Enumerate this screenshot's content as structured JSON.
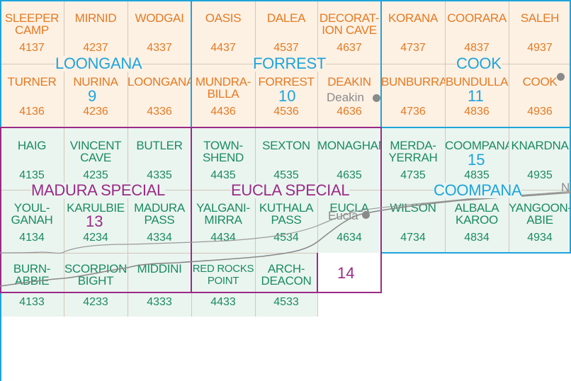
{
  "colors": {
    "orange": "#e57a22",
    "green": "#1b8a63",
    "cyan": "#1ea4dc",
    "purple": "#9b2a86",
    "orange_fill": "#fdf1e4",
    "green_fill": "#eaf5f0",
    "gray": "#8a8a8a"
  },
  "sheets": [
    {
      "name": "SLEEPER\nCAMP",
      "num": "4137",
      "tone": "orange"
    },
    {
      "name": "MIRNID",
      "num": "4237",
      "tone": "orange"
    },
    {
      "name": "WODGAI",
      "num": "4337",
      "tone": "orange"
    },
    {
      "name": "OASIS",
      "num": "4437",
      "tone": "orange"
    },
    {
      "name": "DALEA",
      "num": "4537",
      "tone": "orange"
    },
    {
      "name": "DECORAT-\nION CAVE",
      "num": "4637",
      "tone": "orange"
    },
    {
      "name": "KORANA",
      "num": "4737",
      "tone": "orange"
    },
    {
      "name": "COORARA",
      "num": "4837",
      "tone": "orange"
    },
    {
      "name": "SALEH",
      "num": "4937",
      "tone": "orange"
    },
    {
      "name": "TURNER",
      "num": "4136",
      "tone": "orange"
    },
    {
      "name": "NURINA",
      "num": "4236",
      "tone": "orange"
    },
    {
      "name": "LOONGANA",
      "num": "4336",
      "tone": "orange"
    },
    {
      "name": "MUNDRA-\nBILLA",
      "num": "4436",
      "tone": "orange"
    },
    {
      "name": "FORREST",
      "num": "4536",
      "tone": "orange"
    },
    {
      "name": "DEAKIN",
      "num": "4636",
      "tone": "orange"
    },
    {
      "name": "BUNBURRA",
      "num": "4736",
      "tone": "orange"
    },
    {
      "name": "BUNDULLA",
      "num": "4836",
      "tone": "orange"
    },
    {
      "name": "COOK",
      "num": "4936",
      "tone": "orange"
    },
    {
      "name": "HAIG",
      "num": "4135",
      "tone": "green"
    },
    {
      "name": "VINCENT\nCAVE",
      "num": "4235",
      "tone": "green"
    },
    {
      "name": "BUTLER",
      "num": "4335",
      "tone": "green"
    },
    {
      "name": "TOWN-\nSHEND",
      "num": "4435",
      "tone": "green"
    },
    {
      "name": "SEXTON",
      "num": "4535",
      "tone": "green"
    },
    {
      "name": "MONAGHAN",
      "num": "4635",
      "tone": "green"
    },
    {
      "name": "MERDA-\nYERRAH",
      "num": "4735",
      "tone": "green"
    },
    {
      "name": "COOMPANA",
      "num": "4835",
      "tone": "green"
    },
    {
      "name": "KNARDNA",
      "num": "4935",
      "tone": "green"
    },
    {
      "name": "YOUL-\nGANAH",
      "num": "4134",
      "tone": "green"
    },
    {
      "name": "KARULBIE",
      "num": "4234",
      "tone": "green"
    },
    {
      "name": "MADURA\nPASS",
      "num": "4334",
      "tone": "green"
    },
    {
      "name": "YALGANI-\nMIRRA",
      "num": "4434",
      "tone": "green"
    },
    {
      "name": "KUTHALA\nPASS",
      "num": "4534",
      "tone": "green"
    },
    {
      "name": "EUCLA",
      "num": "4634",
      "tone": "green"
    },
    {
      "name": "WILSON",
      "num": "4734",
      "tone": "green"
    },
    {
      "name": "ALBALA\nKAROO",
      "num": "4834",
      "tone": "green"
    },
    {
      "name": "YANGOON-\nABIE",
      "num": "4934",
      "tone": "green"
    },
    {
      "name": "BURN-\nABBIE",
      "num": "4133",
      "tone": "green"
    },
    {
      "name": "SCORPION\nBIGHT",
      "num": "4233",
      "tone": "green"
    },
    {
      "name": "MIDDINI",
      "num": "4333",
      "tone": "green"
    },
    {
      "name": "RED ROCKS\nPOINT",
      "num": "4433",
      "tone": "green"
    },
    {
      "name": "ARCH-\nDEACON",
      "num": "4533",
      "tone": "green"
    }
  ],
  "regions": [
    {
      "name": "LOONGANA",
      "number": "9",
      "color": "cyan"
    },
    {
      "name": "FORREST",
      "number": "10",
      "color": "cyan"
    },
    {
      "name": "COOK",
      "number": "11",
      "color": "cyan"
    },
    {
      "name": "MADURA SPECIAL",
      "number": "13",
      "color": "purple"
    },
    {
      "name": "EUCLA SPECIAL",
      "number": "",
      "color": "purple"
    },
    {
      "name": "",
      "number": "14",
      "color": "purple"
    },
    {
      "name": "COOMPANA",
      "number": "15",
      "color": "cyan"
    }
  ],
  "towns": [
    "Deakin",
    "Eucla"
  ],
  "edge_letter": "N"
}
